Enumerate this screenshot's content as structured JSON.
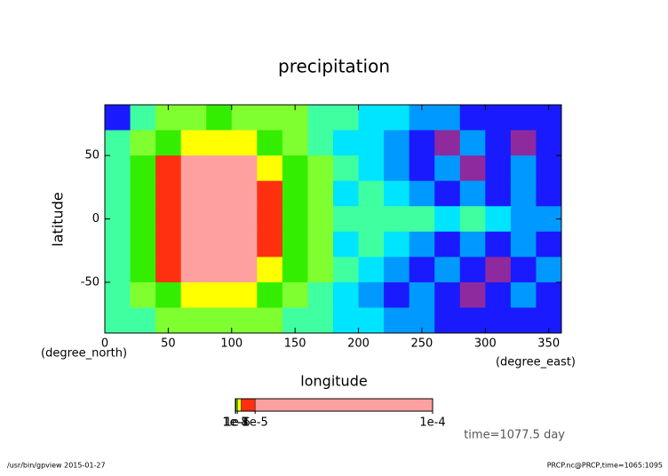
{
  "chart_data": {
    "type": "contour",
    "title": "precipitation",
    "x_label": "longitude",
    "y_label": "latitude",
    "x_units": "(degree_east)",
    "y_units": "(degree_north)",
    "xlim": [
      0,
      360
    ],
    "ylim": [
      -90,
      90
    ],
    "xticks": [
      0,
      50,
      100,
      150,
      200,
      250,
      300,
      350
    ],
    "yticks": [
      -50,
      0,
      50
    ],
    "x": [
      10,
      30,
      50,
      70,
      90,
      110,
      130,
      150,
      170,
      190,
      210,
      230,
      250,
      270,
      290,
      310,
      330,
      350
    ],
    "y": [
      80,
      60,
      40,
      20,
      0,
      -20,
      -40,
      -60,
      -80
    ],
    "levels": [
      1e-09,
      3e-09,
      1e-08,
      3e-08,
      1e-07,
      3e-07,
      1e-06,
      3e-06,
      1e-05
    ],
    "colors": [
      "#8e2a9e",
      "#1a1aff",
      "#0099ff",
      "#00e5ff",
      "#40ffa0",
      "#80ff30",
      "#33ee00",
      "#ffff00",
      "#ff3010",
      "#ffa0a0"
    ],
    "z": [
      [
        2e-09,
        6e-08,
        2e-07,
        2e-07,
        5e-07,
        2e-07,
        2e-07,
        2e-07,
        6e-08,
        6e-08,
        2e-08,
        2e-08,
        6e-09,
        6e-09,
        2e-09,
        2e-09,
        2e-09,
        2e-09
      ],
      [
        6e-08,
        2e-07,
        5e-07,
        2e-06,
        2e-06,
        2e-06,
        5e-07,
        2e-07,
        6e-08,
        2e-08,
        2e-08,
        6e-09,
        2e-09,
        5e-10,
        6e-09,
        2e-09,
        5e-10,
        2e-09
      ],
      [
        6e-08,
        5e-07,
        5e-06,
        2e-05,
        2e-05,
        2e-05,
        2e-06,
        5e-07,
        2e-07,
        6e-08,
        2e-08,
        6e-09,
        2e-09,
        6e-09,
        5e-10,
        2e-09,
        6e-09,
        2e-09
      ],
      [
        6e-08,
        5e-07,
        5e-06,
        2e-05,
        2e-05,
        2e-05,
        5e-06,
        5e-07,
        2e-07,
        2e-08,
        6e-08,
        2e-08,
        6e-09,
        2e-09,
        6e-09,
        2e-09,
        6e-09,
        2e-09
      ],
      [
        6e-08,
        5e-07,
        5e-06,
        2e-05,
        2e-05,
        2e-05,
        5e-06,
        5e-07,
        2e-07,
        6e-08,
        6e-08,
        6e-08,
        6e-08,
        2e-08,
        6e-08,
        2e-08,
        6e-09,
        6e-09
      ],
      [
        6e-08,
        5e-07,
        5e-06,
        2e-05,
        2e-05,
        2e-05,
        5e-06,
        5e-07,
        2e-07,
        2e-08,
        6e-08,
        2e-08,
        6e-09,
        2e-09,
        6e-09,
        2e-09,
        6e-09,
        2e-09
      ],
      [
        6e-08,
        5e-07,
        5e-06,
        2e-05,
        2e-05,
        2e-05,
        2e-06,
        5e-07,
        2e-07,
        6e-08,
        2e-08,
        6e-09,
        2e-09,
        6e-09,
        2e-09,
        5e-10,
        2e-09,
        6e-09
      ],
      [
        6e-08,
        2e-07,
        5e-07,
        2e-06,
        2e-06,
        2e-06,
        5e-07,
        2e-07,
        6e-08,
        2e-08,
        6e-09,
        2e-09,
        6e-09,
        2e-09,
        5e-10,
        2e-09,
        6e-09,
        2e-09
      ],
      [
        6e-08,
        6e-08,
        2e-07,
        2e-07,
        2e-07,
        2e-07,
        2e-07,
        6e-08,
        6e-08,
        2e-08,
        2e-08,
        6e-09,
        6e-09,
        2e-09,
        2e-09,
        2e-09,
        2e-09,
        2e-09
      ]
    ],
    "colorbar": {
      "lim": [
        0,
        0.0001
      ],
      "ticks": [
        {
          "value": 1e-08,
          "label": "1e-8"
        },
        {
          "value": 1e-07,
          "label": "1e-7"
        },
        {
          "value": 1e-06,
          "label": "1e-6"
        },
        {
          "value": 1e-05,
          "label": "1e-5"
        },
        {
          "value": 0.0001,
          "label": "1e-4"
        }
      ]
    },
    "time_label": "time=1077.5 day",
    "footer_left": "/usr/bin/gpview  2015-01-27",
    "footer_right": "PRCP.nc@PRCP,time=1065:1095"
  }
}
